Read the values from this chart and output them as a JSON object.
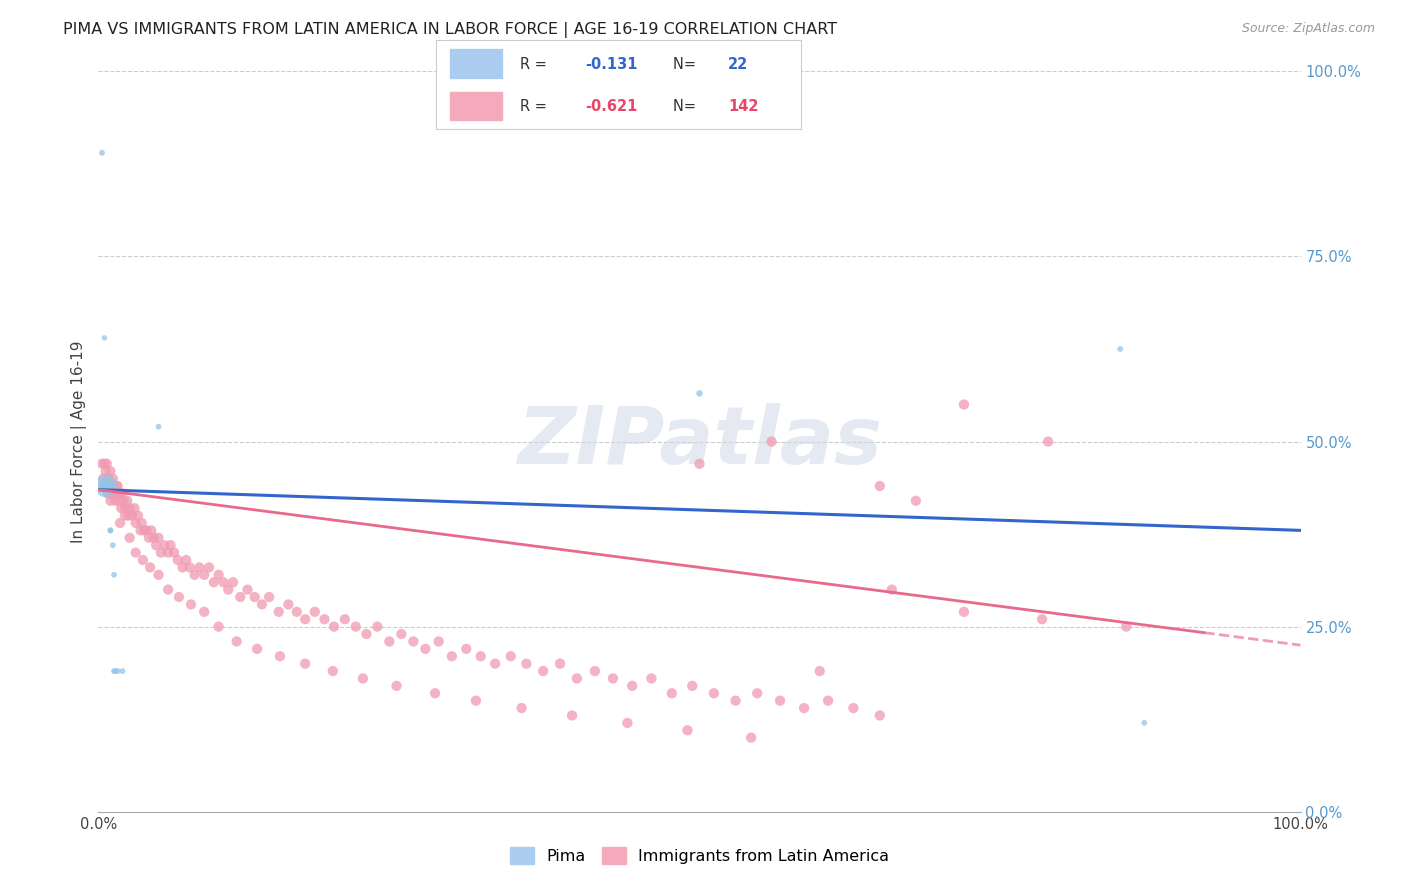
{
  "title": "PIMA VS IMMIGRANTS FROM LATIN AMERICA IN LABOR FORCE | AGE 16-19 CORRELATION CHART",
  "source": "Source: ZipAtlas.com",
  "ylabel": "In Labor Force | Age 16-19",
  "watermark": "ZIPatlas",
  "pima_color": "#92c5e8",
  "latin_color": "#f09ab0",
  "pima_line_color": "#3366cc",
  "latin_line_color": "#e8698a",
  "background_color": "#ffffff",
  "grid_color": "#cccccc",
  "xlim": [
    0,
    1
  ],
  "ylim": [
    0,
    1
  ],
  "ytick_values": [
    0.0,
    0.25,
    0.5,
    0.75,
    1.0
  ],
  "xtick_labels_show": [
    "0.0%",
    "100.0%"
  ],
  "pima_R": "-0.131",
  "pima_N": "22",
  "latin_R": "-0.621",
  "latin_N": "142",
  "pima_x": [
    0.003,
    0.005,
    0.005,
    0.005,
    0.005,
    0.006,
    0.006,
    0.007,
    0.008,
    0.01,
    0.01,
    0.01,
    0.012,
    0.013,
    0.013,
    0.014,
    0.016,
    0.02,
    0.05,
    0.5,
    0.85,
    0.87
  ],
  "pima_y": [
    0.89,
    0.64,
    0.44,
    0.44,
    0.44,
    0.44,
    0.44,
    0.44,
    0.44,
    0.44,
    0.38,
    0.38,
    0.36,
    0.32,
    0.19,
    0.19,
    0.19,
    0.19,
    0.52,
    0.565,
    0.625,
    0.12
  ],
  "pima_sizes": [
    80,
    70,
    80,
    200,
    400,
    1200,
    300,
    120,
    100,
    80,
    80,
    80,
    80,
    80,
    80,
    80,
    80,
    80,
    80,
    100,
    80,
    80
  ],
  "latin_x": [
    0.003,
    0.004,
    0.005,
    0.006,
    0.007,
    0.008,
    0.008,
    0.009,
    0.01,
    0.01,
    0.011,
    0.012,
    0.013,
    0.014,
    0.015,
    0.016,
    0.017,
    0.018,
    0.019,
    0.02,
    0.021,
    0.022,
    0.024,
    0.025,
    0.026,
    0.028,
    0.03,
    0.031,
    0.033,
    0.035,
    0.036,
    0.038,
    0.04,
    0.042,
    0.044,
    0.046,
    0.048,
    0.05,
    0.052,
    0.055,
    0.058,
    0.06,
    0.063,
    0.066,
    0.07,
    0.073,
    0.076,
    0.08,
    0.084,
    0.088,
    0.092,
    0.096,
    0.1,
    0.104,
    0.108,
    0.112,
    0.118,
    0.124,
    0.13,
    0.136,
    0.142,
    0.15,
    0.158,
    0.165,
    0.172,
    0.18,
    0.188,
    0.196,
    0.205,
    0.214,
    0.223,
    0.232,
    0.242,
    0.252,
    0.262,
    0.272,
    0.283,
    0.294,
    0.306,
    0.318,
    0.33,
    0.343,
    0.356,
    0.37,
    0.384,
    0.398,
    0.413,
    0.428,
    0.444,
    0.46,
    0.477,
    0.494,
    0.512,
    0.53,
    0.548,
    0.567,
    0.587,
    0.607,
    0.628,
    0.65,
    0.005,
    0.008,
    0.01,
    0.012,
    0.015,
    0.018,
    0.022,
    0.026,
    0.031,
    0.037,
    0.043,
    0.05,
    0.058,
    0.067,
    0.077,
    0.088,
    0.1,
    0.115,
    0.132,
    0.151,
    0.172,
    0.195,
    0.22,
    0.248,
    0.28,
    0.314,
    0.352,
    0.394,
    0.44,
    0.49,
    0.543,
    0.6,
    0.66,
    0.72,
    0.785,
    0.855,
    0.65,
    0.72,
    0.79,
    0.68,
    0.5,
    0.56
  ],
  "latin_y": [
    0.47,
    0.45,
    0.44,
    0.46,
    0.47,
    0.44,
    0.45,
    0.43,
    0.46,
    0.44,
    0.43,
    0.45,
    0.43,
    0.42,
    0.44,
    0.44,
    0.42,
    0.43,
    0.41,
    0.43,
    0.42,
    0.41,
    0.42,
    0.4,
    0.41,
    0.4,
    0.41,
    0.39,
    0.4,
    0.38,
    0.39,
    0.38,
    0.38,
    0.37,
    0.38,
    0.37,
    0.36,
    0.37,
    0.35,
    0.36,
    0.35,
    0.36,
    0.35,
    0.34,
    0.33,
    0.34,
    0.33,
    0.32,
    0.33,
    0.32,
    0.33,
    0.31,
    0.32,
    0.31,
    0.3,
    0.31,
    0.29,
    0.3,
    0.29,
    0.28,
    0.29,
    0.27,
    0.28,
    0.27,
    0.26,
    0.27,
    0.26,
    0.25,
    0.26,
    0.25,
    0.24,
    0.25,
    0.23,
    0.24,
    0.23,
    0.22,
    0.23,
    0.21,
    0.22,
    0.21,
    0.2,
    0.21,
    0.2,
    0.19,
    0.2,
    0.18,
    0.19,
    0.18,
    0.17,
    0.18,
    0.16,
    0.17,
    0.16,
    0.15,
    0.16,
    0.15,
    0.14,
    0.15,
    0.14,
    0.13,
    0.47,
    0.43,
    0.42,
    0.44,
    0.43,
    0.39,
    0.4,
    0.37,
    0.35,
    0.34,
    0.33,
    0.32,
    0.3,
    0.29,
    0.28,
    0.27,
    0.25,
    0.23,
    0.22,
    0.21,
    0.2,
    0.19,
    0.18,
    0.17,
    0.16,
    0.15,
    0.14,
    0.13,
    0.12,
    0.11,
    0.1,
    0.19,
    0.3,
    0.27,
    0.26,
    0.25,
    0.44,
    0.55,
    0.5,
    0.42,
    0.47,
    0.5
  ]
}
